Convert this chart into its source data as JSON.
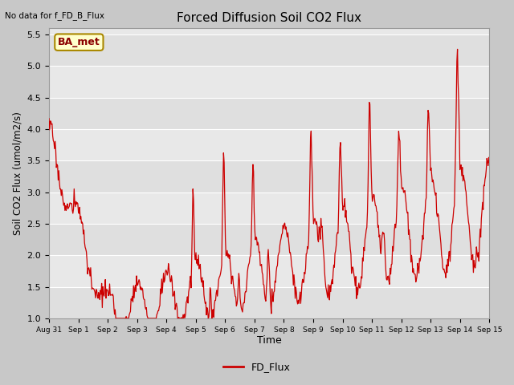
{
  "title": "Forced Diffusion Soil CO2 Flux",
  "xlabel": "Time",
  "ylabel": "Soil CO2 Flux (umol/m2/s)",
  "top_left_text": "No data for f_FD_B_Flux",
  "legend_label": "FD_Flux",
  "legend_color": "#cc0000",
  "line_color": "#cc0000",
  "background_color": "#c8c8c8",
  "plot_bg_color": "#e8e8e8",
  "ylim": [
    1.0,
    5.6
  ],
  "yticks": [
    1.0,
    1.5,
    2.0,
    2.5,
    3.0,
    3.5,
    4.0,
    4.5,
    5.0,
    5.5
  ],
  "ba_met_box_color": "#ffffcc",
  "ba_met_text_color": "#8b0000",
  "ba_met_label": "BA_met",
  "tick_labels": [
    "Aug 31",
    "Sep 1",
    "Sep 2",
    "Sep 3",
    "Sep 4",
    "Sep 5",
    "Sep 6",
    "Sep 7",
    "Sep 8",
    "Sep 9",
    "Sep 10",
    "Sep 11",
    "Sep 12",
    "Sep 13",
    "Sep 14",
    "Sep 15"
  ]
}
